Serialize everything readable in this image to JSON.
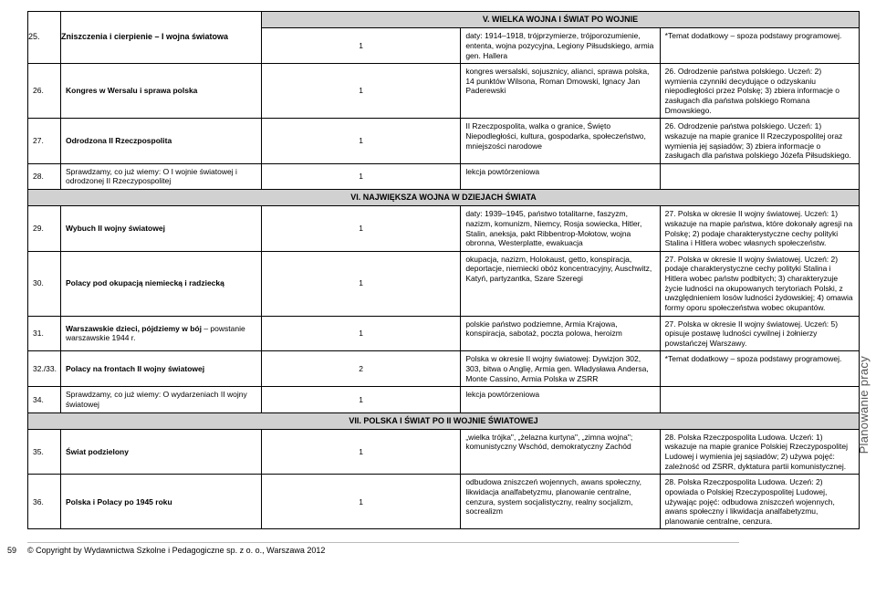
{
  "sideLabel": "Planowanie pracy",
  "pageNum": "59",
  "copyright": "© Copyright by Wydawnictwa Szkolne i Pedagogiczne sp. z o. o., Warszawa 2012",
  "sections": {
    "s5": "V. WIELKA WOJNA I ŚWIAT PO WOJNIE",
    "s6": "VI. NAJWIĘKSZA WOJNA W DZIEJACH ŚWIATA",
    "s7": "VII. POLSKA I ŚWIAT PO II WOJNIE ŚWIATOWEJ"
  },
  "rows": {
    "r25": {
      "num": "25.",
      "topicBold": "Zniszczenia i cierpienie – I wojna światowa",
      "hours": "1",
      "content": "daty: 1914–1918, trójprzymierze, trójporozumienie, ententa, wojna pozycyjna, Legiony Piłsudskiego, armia gen. Hallera",
      "outcome": "*Temat dodatkowy – spoza podstawy programowej."
    },
    "r26": {
      "num": "26.",
      "topicBold": "Kongres w Wersalu i sprawa polska",
      "hours": "1",
      "content": "kongres wersalski, sojusznicy, alianci, sprawa polska, 14 punktów Wilsona, Roman Dmowski, Ignacy Jan Paderewski",
      "outcome": "26. Odrodzenie państwa polskiego. Uczeń: 2) wymienia czynniki decydujące o odzyskaniu niepodległości przez Polskę; 3) zbiera informacje o zasługach dla państwa polskiego Romana Dmowskiego."
    },
    "r27": {
      "num": "27.",
      "topicBold": "Odrodzona II Rzeczpospolita",
      "hours": "1",
      "content": "II Rzeczpospolita, walka o granice, Święto Niepodległości, kultura, gospodarka, społeczeństwo, mniejszości narodowe",
      "outcome": "26. Odrodzenie państwa polskiego. Uczeń: 1) wskazuje na mapie granice II Rzeczypospolitej oraz wymienia jej sąsiadów; 3) zbiera informacje o zasługach dla państwa polskiego Józefa Piłsudskiego."
    },
    "r28": {
      "num": "28.",
      "topic": "Sprawdzamy, co już wiemy: O I wojnie światowej i odrodzonej II Rzeczypospolitej",
      "hours": "1",
      "content": "lekcja powtórzeniowa",
      "outcome": ""
    },
    "r29": {
      "num": "29.",
      "topicBold": "Wybuch II wojny światowej",
      "hours": "1",
      "content": "daty: 1939–1945, państwo totalitarne, faszyzm, nazizm, komunizm, Niemcy, Rosja sowiecka, Hitler, Stalin, aneksja, pakt Ribbentrop-Mołotow, wojna obronna, Westerplatte, ewakuacja",
      "outcome": "27. Polska w okresie II wojny światowej. Uczeń: 1) wskazuje na mapie państwa, które dokonały agresji na Polskę; 2) podaje charakterystyczne cechy polityki Stalina i Hitlera wobec własnych społeczeństw."
    },
    "r30": {
      "num": "30.",
      "topicBold": "Polacy pod okupacją niemiecką i radziecką",
      "hours": "1",
      "content": "okupacja, nazizm, Holokaust, getto, konspiracja, deportacje, niemiecki obóz koncentracyjny, Auschwitz, Katyń, partyzantka, Szare Szeregi",
      "outcome": "27. Polska w okresie II wojny światowej. Uczeń: 2) podaje charakterystyczne cechy polityki Stalina i Hitlera wobec państw podbitych; 3) charakteryzuje życie ludności na okupowanych terytoriach Polski, z uwzględnieniem losów ludności żydowskiej; 4) omawia formy oporu społeczeństwa wobec okupantów."
    },
    "r31": {
      "num": "31.",
      "topicBold": "Warszawskie dzieci, pójdziemy w bój",
      "topicTail": " – powstanie warszawskie 1944 r.",
      "hours": "1",
      "content": "polskie państwo podziemne, Armia Krajowa, konspiracja, sabotaż, poczta polowa, heroizm",
      "outcome": "27. Polska w okresie II wojny światowej. Uczeń: 5) opisuje postawę ludności cywilnej i żołnierzy powstańczej Warszawy."
    },
    "r32": {
      "num": "32./33.",
      "topicBold": "Polacy na frontach II wojny światowej",
      "hours": "2",
      "content": "Polska w okresie II wojny światowej: Dywizjon 302, 303, bitwa o Anglię, Armia gen. Władysława Andersa, Monte Cassino, Armia Polska w ZSRR",
      "outcome": "*Temat dodatkowy – spoza podstawy programowej."
    },
    "r34": {
      "num": "34.",
      "topic": "Sprawdzamy, co już wiemy: O wydarzeniach II wojny światowej",
      "hours": "1",
      "content": "lekcja powtórzeniowa",
      "outcome": ""
    },
    "r35": {
      "num": "35.",
      "topicBold": "Świat podzielony",
      "hours": "1",
      "content": "„wielka trójka\", „żelazna kurtyna\", „zimna wojna\"; komunistyczny Wschód, demokratyczny Zachód",
      "outcome": "28. Polska Rzeczpospolita Ludowa. Uczeń: 1) wskazuje na mapie granice Polskiej Rzeczypospolitej Ludowej i wymienia jej sąsiadów; 2) używa pojęć: zależność od ZSRR, dyktatura partii komunistycznej."
    },
    "r36": {
      "num": "36.",
      "topicBold": "Polska i Polacy po 1945 roku",
      "hours": "1",
      "content": "odbudowa zniszczeń wojennych, awans społeczny, likwidacja analfabetyzmu, planowanie centralne, cenzura, system socjalistyczny, realny socjalizm, socrealizm",
      "outcome": "28. Polska Rzeczpospolita Ludowa. Uczeń: 2) opowiada o Polskiej Rzeczypospolitej Ludowej, używając pojęć: odbudowa zniszczeń wojennych, awans społeczny i likwidacja analfabetyzmu, planowanie centralne, cenzura."
    }
  }
}
